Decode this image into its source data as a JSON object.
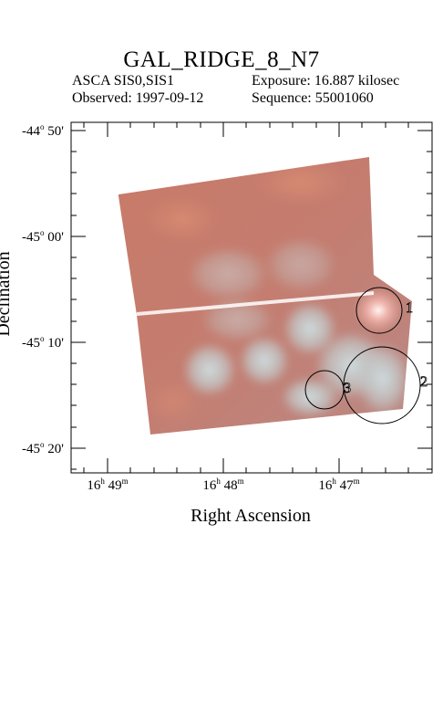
{
  "header": {
    "title": "GAL_RIDGE_8_N7",
    "instrument": "ASCA SIS0,SIS1",
    "exposure": "Exposure: 16.887 kilosec",
    "observed": "Observed: 1997-09-12",
    "sequence": "Sequence: 55001060"
  },
  "axes": {
    "xlabel": "Right Ascension",
    "ylabel": "Declination",
    "dec_ticks": [
      {
        "deg": "-44",
        "min": "50'"
      },
      {
        "deg": "-45",
        "min": "00'"
      },
      {
        "deg": "-45",
        "min": "10'"
      },
      {
        "deg": "-45",
        "min": "20'"
      }
    ],
    "ra_ticks": [
      {
        "h": "16",
        "m": "49"
      },
      {
        "h": "16",
        "m": "48"
      },
      {
        "h": "16",
        "m": "47"
      }
    ]
  },
  "sources": [
    {
      "id": "1"
    },
    {
      "id": "2"
    },
    {
      "id": "3"
    }
  ],
  "colors": {
    "image_base": "#c87a6e",
    "image_bright": "#e6a08e",
    "image_cool": "#c6d3d6",
    "region_stroke": "#000000"
  }
}
